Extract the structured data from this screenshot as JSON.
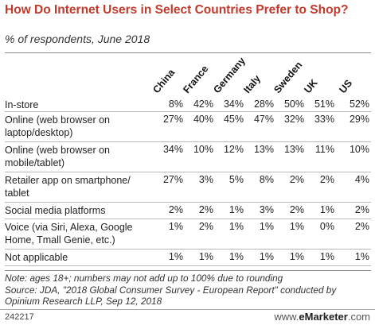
{
  "title": "How Do Internet Users in Select Countries Prefer to Shop?",
  "subtitle": "% of respondents, June 2018",
  "chart_data": {
    "type": "table",
    "title": "How Do Internet Users in Select Countries Prefer to Shop?",
    "subtitle": "% of respondents, June 2018",
    "columns": [
      "China",
      "France",
      "Germany",
      "Italy",
      "Sweden",
      "UK",
      "US"
    ],
    "rows": [
      {
        "label": "In-store",
        "values": [
          "8%",
          "42%",
          "34%",
          "28%",
          "50%",
          "51%",
          "52%"
        ]
      },
      {
        "label": "Online (web browser on laptop/desktop)",
        "values": [
          "27%",
          "40%",
          "45%",
          "47%",
          "32%",
          "33%",
          "29%"
        ]
      },
      {
        "label": "Online (web browser on mobile/tablet)",
        "values": [
          "34%",
          "10%",
          "12%",
          "13%",
          "13%",
          "11%",
          "10%"
        ]
      },
      {
        "label": "Retailer app on smartphone/ tablet",
        "values": [
          "27%",
          "3%",
          "5%",
          "8%",
          "2%",
          "2%",
          "4%"
        ]
      },
      {
        "label": "Social media platforms",
        "values": [
          "2%",
          "2%",
          "1%",
          "3%",
          "2%",
          "1%",
          "2%"
        ]
      },
      {
        "label": "Voice (via Siri, Alexa, Google Home, Tmall Genie, etc.)",
        "values": [
          "1%",
          "2%",
          "1%",
          "1%",
          "1%",
          "0%",
          "2%"
        ]
      },
      {
        "label": "Not applicable",
        "values": [
          "1%",
          "1%",
          "1%",
          "1%",
          "1%",
          "1%",
          "1%"
        ]
      }
    ]
  },
  "note": "Note: ages 18+; numbers may not add up to 100% due to rounding",
  "source": "Source: JDA, \"2018 Global Consumer Survey - European Report\" conducted by Opinium Research LLP, Sep 12, 2018",
  "footer": {
    "id": "242217",
    "brand_prefix": "www.",
    "brand_name": "eMarketer",
    "brand_suffix": ".com"
  }
}
